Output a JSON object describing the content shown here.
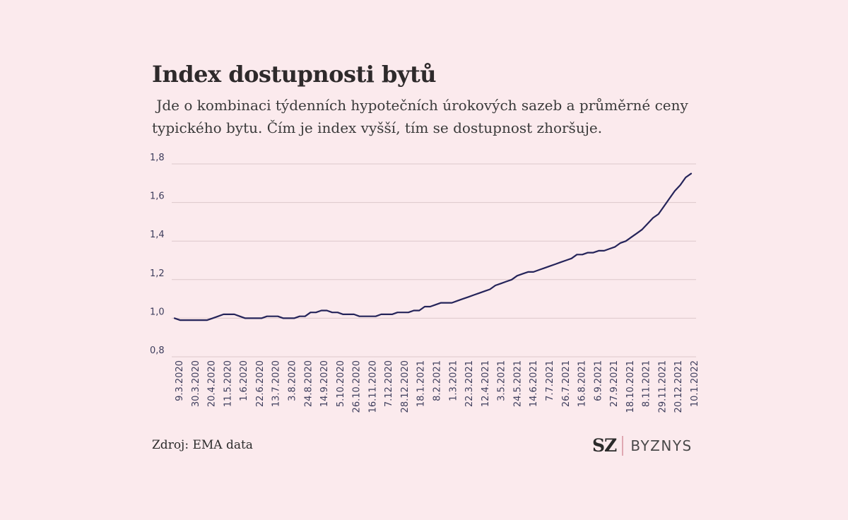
{
  "header": {
    "title": "Index dostupnosti bytů",
    "subtitle": " Jde o kombinaci týdenních hypotečních úrokových sazeb a průměrné ceny typického bytu. Čím je index vyšší, tím se dostupnost zhoršuje."
  },
  "footer": {
    "source": "Zdroj: EMA data",
    "logo_sz": "SZ",
    "logo_byznys": "BYZNYS"
  },
  "colors": {
    "background": "#fbeaed",
    "line": "#25245a",
    "grid": "#ddc8cc"
  },
  "chart_data": {
    "type": "line",
    "title": "Index dostupnosti bytů",
    "xlabel": "",
    "ylabel": "",
    "ylim": [
      0.8,
      1.8
    ],
    "y_ticks": [
      "0,8",
      "1,0",
      "1,2",
      "1,4",
      "1,6",
      "1,8"
    ],
    "x_tick_labels": [
      "9.3.2020",
      "30.3.2020",
      "20.4.2020",
      "11.5.2020",
      "1.6.2020",
      "22.6.2020",
      "13.7.2020",
      "3.8.2020",
      "24.8.2020",
      "14.9.2020",
      "5.10.2020",
      "26.10.2020",
      "16.11.2020",
      "7.12.2020",
      "28.12.2020",
      "18.1.2021",
      "8.2.2021",
      "1.3.2021",
      "22.3.2021",
      "12.4.2021",
      "3.5.2021",
      "24.5.2021",
      "14.6.2021",
      "7.7.2021",
      "26.7.2021",
      "16.8.2021",
      "6.9.2021",
      "27.9.2021",
      "18.10.2021",
      "8.11.2021",
      "29.11.2021",
      "20.12.2021",
      "10.1.2022"
    ],
    "grid": true,
    "legend": "none",
    "series": [
      {
        "values": [
          1.0,
          0.99,
          0.99,
          0.99,
          0.99,
          0.99,
          0.99,
          1.0,
          1.01,
          1.02,
          1.02,
          1.02,
          1.01,
          1.0,
          1.0,
          1.0,
          1.0,
          1.01,
          1.01,
          1.01,
          1.0,
          1.0,
          1.0,
          1.01,
          1.01,
          1.03,
          1.03,
          1.04,
          1.04,
          1.03,
          1.03,
          1.02,
          1.02,
          1.02,
          1.01,
          1.01,
          1.01,
          1.01,
          1.02,
          1.02,
          1.02,
          1.03,
          1.03,
          1.03,
          1.04,
          1.04,
          1.06,
          1.06,
          1.07,
          1.08,
          1.08,
          1.08,
          1.09,
          1.1,
          1.11,
          1.12,
          1.13,
          1.14,
          1.15,
          1.17,
          1.18,
          1.19,
          1.2,
          1.22,
          1.23,
          1.24,
          1.24,
          1.25,
          1.26,
          1.27,
          1.28,
          1.29,
          1.3,
          1.31,
          1.33,
          1.33,
          1.34,
          1.34,
          1.35,
          1.35,
          1.36,
          1.37,
          1.39,
          1.4,
          1.42,
          1.44,
          1.46,
          1.49,
          1.52,
          1.54,
          1.58,
          1.62,
          1.66,
          1.69,
          1.73,
          1.75
        ]
      }
    ]
  }
}
